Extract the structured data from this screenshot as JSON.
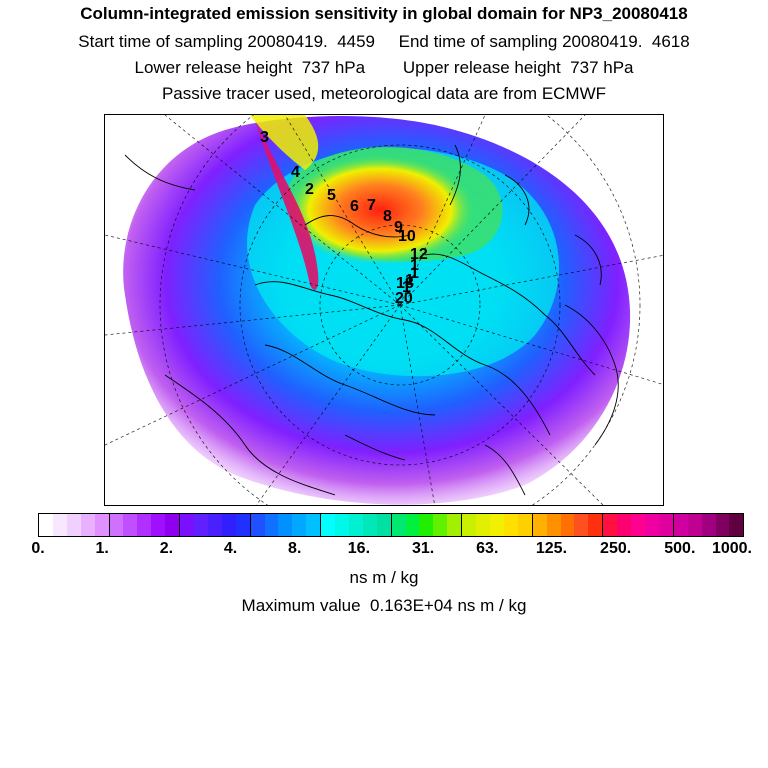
{
  "header": {
    "title": "Column-integrated emission sensitivity in global domain for NP3_20080418",
    "sampling_line": "Start time of sampling 20080419.  4459     End time of sampling 20080419.  4618",
    "release_line": "Lower release height  737 hPa        Upper release height  737 hPa",
    "tracer_line": "Passive tracer used, meteorological data are from ECMWF"
  },
  "map": {
    "release_labels": [
      "3",
      "4",
      "2",
      "5",
      "6",
      "7",
      "8",
      "9",
      "10",
      "12",
      "1",
      "1",
      "1",
      "1",
      "18",
      "20"
    ],
    "colors": {
      "white": "#ffffff",
      "violet": "#c060f0",
      "blue": "#3030ff",
      "cyan": "#00e8f0",
      "green": "#40e060",
      "yellow": "#f0f000",
      "orange": "#ff8020",
      "red": "#ff2010",
      "magenta": "#e0106a"
    }
  },
  "colorbar": {
    "tick_labels": [
      "0.",
      "1.",
      "2.",
      "4.",
      "8.",
      "16.",
      "31.",
      "63.",
      "125.",
      "250.",
      "500.",
      "1000."
    ],
    "colors": [
      "#ffffff",
      "#f8e8ff",
      "#f0d0ff",
      "#e8b0ff",
      "#e090ff",
      "#d070ff",
      "#c050ff",
      "#b030ff",
      "#a010ff",
      "#9000f0",
      "#7a10ff",
      "#6020ff",
      "#4a20ff",
      "#3020ff",
      "#2030ff",
      "#2050ff",
      "#1070ff",
      "#0090ff",
      "#00a8ff",
      "#00c0ff",
      "#00ffff",
      "#00f8e8",
      "#00f0d0",
      "#00e8b8",
      "#00e0a0",
      "#00e870",
      "#00f040",
      "#20f000",
      "#60f000",
      "#a0f000",
      "#c8f000",
      "#e0f000",
      "#f0f000",
      "#ffe000",
      "#ffd000",
      "#ffb000",
      "#ff9000",
      "#ff7000",
      "#ff5020",
      "#ff3010",
      "#ff1040",
      "#ff0070",
      "#ff0090",
      "#f000a0",
      "#e000a0",
      "#d000a0",
      "#c00090",
      "#a00080",
      "#800060",
      "#600040"
    ],
    "units": "ns m / kg",
    "max_value_text": "Maximum value  0.163E+04 ns m / kg"
  }
}
